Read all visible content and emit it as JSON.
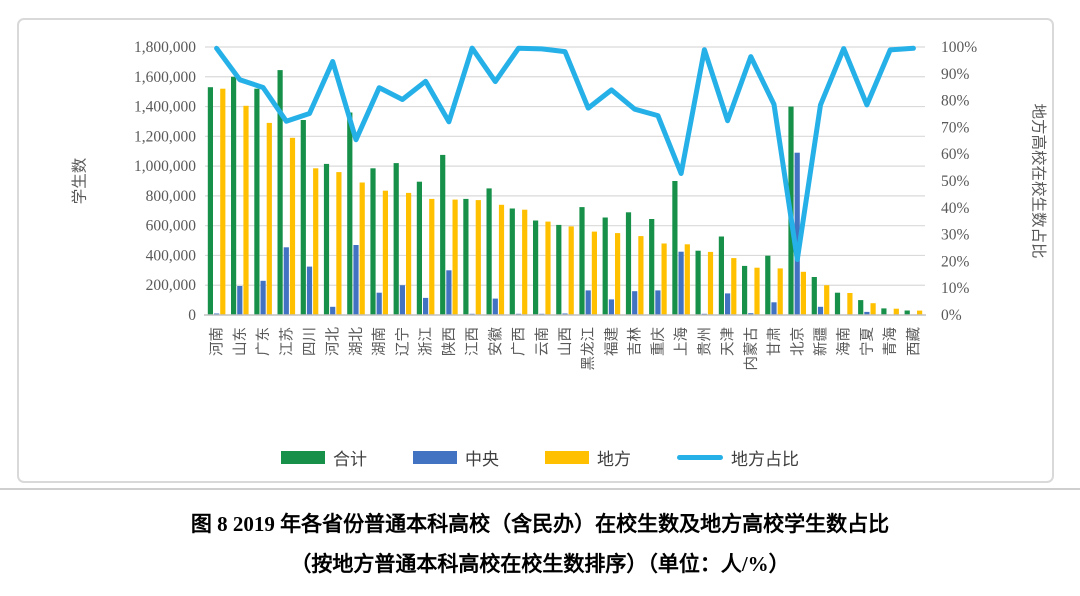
{
  "figure": {
    "caption_line1": "图 8 2019 年各省份普通本科高校（含民办）在校生数及地方高校学生数占比",
    "caption_line2": "（按地方普通本科高校在校生数排序）（单位：人/%）"
  },
  "colors": {
    "total_green": "#17914A",
    "central_blue": "#4273C3",
    "local_yellow": "#FFC000",
    "ratio_cyan": "#26B0E8",
    "gridline": "#dadada",
    "axis_line": "#c0c0c0",
    "tick_text": "#595959",
    "legend_text": "#3f3f3f"
  },
  "chart_data": {
    "type": "bar",
    "subtype": "grouped-bars-with-percentage-line",
    "title": "",
    "categories": [
      "河南",
      "山东",
      "广东",
      "江苏",
      "四川",
      "河北",
      "湖北",
      "湖南",
      "辽宁",
      "浙江",
      "陕西",
      "江西",
      "安徽",
      "广西",
      "云南",
      "山西",
      "黑龙江",
      "福建",
      "吉林",
      "重庆",
      "上海",
      "贵州",
      "天津",
      "内蒙古",
      "甘肃",
      "北京",
      "新疆",
      "海南",
      "宁夏",
      "青海",
      "西藏"
    ],
    "series": [
      {
        "name": "合计",
        "type": "bar",
        "color": "#17914A",
        "values": [
          1530000,
          1600000,
          1520000,
          1645000,
          1310000,
          1015000,
          1360000,
          985000,
          1020000,
          895000,
          1075000,
          780000,
          850000,
          715000,
          635000,
          605000,
          725000,
          655000,
          690000,
          645000,
          900000,
          432000,
          527000,
          330000,
          398000,
          1400000,
          255000,
          150000,
          100000,
          44000,
          30000
        ]
      },
      {
        "name": "中央",
        "type": "bar",
        "color": "#4273C3",
        "values": [
          10000,
          195000,
          230000,
          455000,
          325000,
          55000,
          470000,
          150000,
          200000,
          115000,
          300000,
          8000,
          110000,
          8000,
          8000,
          10000,
          165000,
          105000,
          160000,
          165000,
          425000,
          8000,
          145000,
          12000,
          85000,
          1090000,
          55000,
          2000,
          21000,
          1500,
          500
        ]
      },
      {
        "name": "地方",
        "type": "bar",
        "color": "#FFC000",
        "values": [
          1520000,
          1405000,
          1290000,
          1190000,
          985000,
          960000,
          890000,
          835000,
          820000,
          780000,
          775000,
          772000,
          740000,
          707000,
          627000,
          595000,
          560000,
          550000,
          530000,
          480000,
          475000,
          424000,
          382000,
          318000,
          313000,
          290000,
          200000,
          148000,
          79000,
          42500,
          29500
        ]
      }
    ],
    "line_series": {
      "name": "地方占比",
      "type": "line",
      "axis": "right",
      "color": "#26B0E8",
      "values_pct": [
        99.5,
        87.8,
        84.9,
        72.3,
        75.2,
        94.6,
        65.4,
        84.8,
        80.4,
        87.2,
        72.1,
        99.6,
        87.1,
        99.5,
        99.3,
        98.3,
        77.2,
        84.0,
        76.8,
        74.4,
        52.8,
        99.0,
        72.5,
        96.4,
        78.6,
        20.7,
        78.4,
        99.4,
        78.4,
        98.9,
        99.5
      ]
    },
    "y_left": {
      "label": "学生数",
      "min": 0,
      "max": 1800000,
      "tick_step": 200000,
      "tick_labels": [
        "0",
        "200,000",
        "400,000",
        "600,000",
        "800,000",
        "1,000,000",
        "1,200,000",
        "1,400,000",
        "1,600,000",
        "1,800,000"
      ]
    },
    "y_right": {
      "label": "地方高校在校生数占比",
      "min": 0,
      "max": 100,
      "tick_step": 10,
      "tick_labels": [
        "0%",
        "10%",
        "20%",
        "30%",
        "40%",
        "50%",
        "60%",
        "70%",
        "80%",
        "90%",
        "100%"
      ]
    },
    "grid": "horizontal gridlines on, left axis major units",
    "legend_position": "bottom",
    "legend": [
      {
        "label": "合计",
        "marker": "swatch",
        "color": "#17914A"
      },
      {
        "label": "中央",
        "marker": "swatch",
        "color": "#4273C3"
      },
      {
        "label": "地方",
        "marker": "swatch",
        "color": "#FFC000"
      },
      {
        "label": "地方占比",
        "marker": "line",
        "color": "#26B0E8"
      }
    ]
  }
}
